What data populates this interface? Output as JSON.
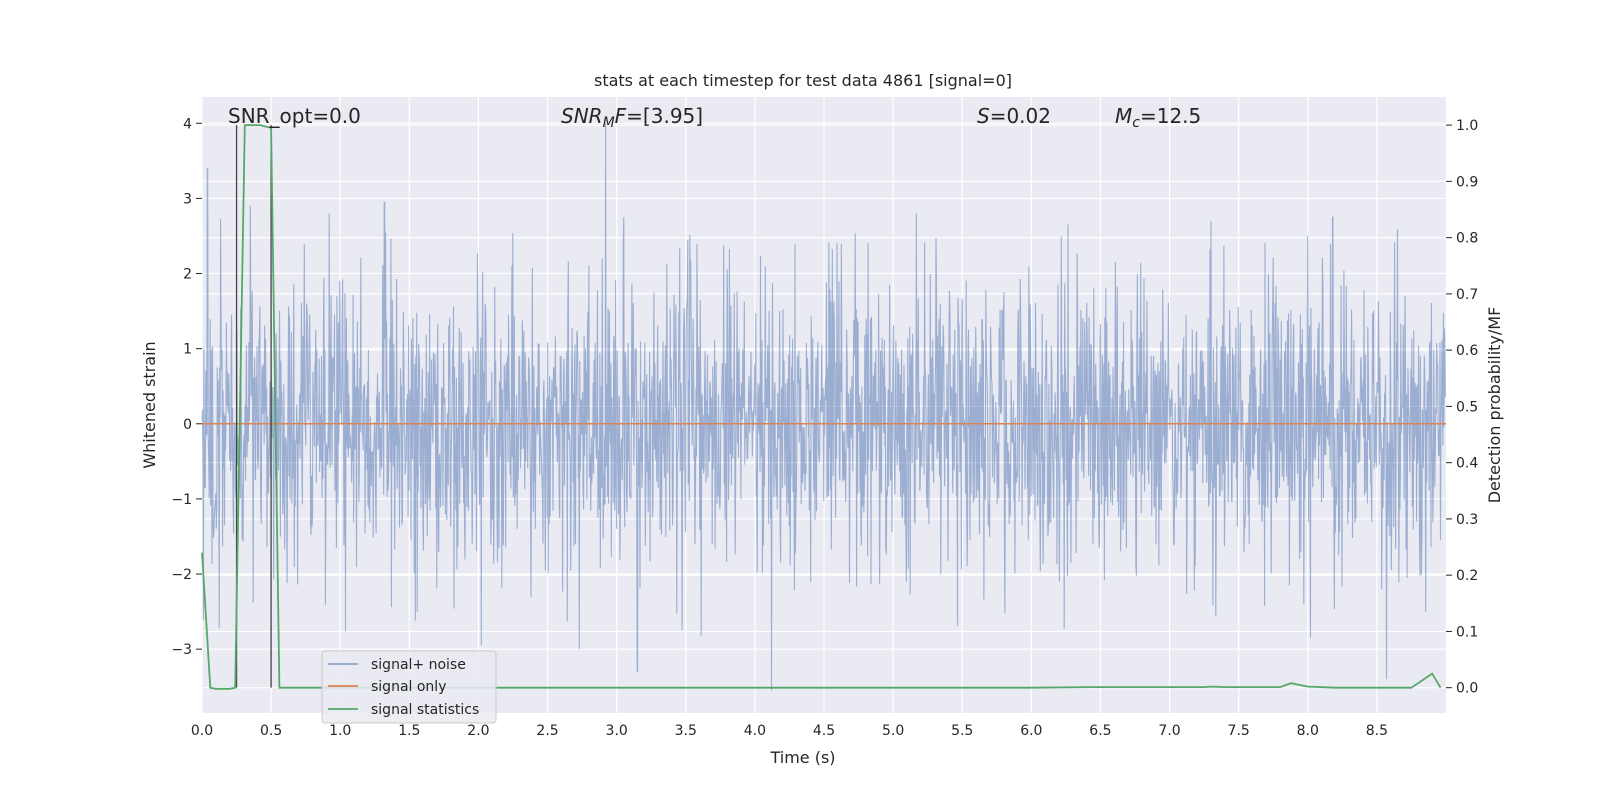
{
  "chart_data": {
    "type": "line",
    "title": "stats at each timestep for test data 4861 [signal=0]",
    "xlabel": "Time (s)",
    "ylabel": "Whitened strain",
    "y2label": "Detection probability/MF",
    "xlim": [
      0.0,
      9.0
    ],
    "ylim": [
      -3.85,
      4.35
    ],
    "y2lim": [
      -0.045,
      1.05
    ],
    "xticks": [
      0.0,
      0.5,
      1.0,
      1.5,
      2.0,
      2.5,
      3.0,
      3.5,
      4.0,
      4.5,
      5.0,
      5.5,
      6.0,
      6.5,
      7.0,
      7.5,
      8.0,
      8.5
    ],
    "xtick_labels": [
      "0.0",
      "0.5",
      "1.0",
      "1.5",
      "2.0",
      "2.5",
      "3.0",
      "3.5",
      "4.0",
      "4.5",
      "5.0",
      "5.5",
      "6.0",
      "6.5",
      "7.0",
      "7.5",
      "8.0",
      "8.5"
    ],
    "yticks": [
      -3,
      -2,
      -1,
      0,
      1,
      2,
      3,
      4
    ],
    "ytick_labels": [
      "−3",
      "−2",
      "−1",
      "0",
      "1",
      "2",
      "3",
      "4"
    ],
    "y2ticks": [
      0.0,
      0.1,
      0.2,
      0.3,
      0.4,
      0.5,
      0.6,
      0.7,
      0.8,
      0.9,
      1.0
    ],
    "y2tick_labels": [
      "0.0",
      "0.1",
      "0.2",
      "0.3",
      "0.4",
      "0.5",
      "0.6",
      "0.7",
      "0.8",
      "0.9",
      "1.0"
    ],
    "grid": true,
    "legend_position": "lower-left",
    "annotations": {
      "snr_opt": "SNR_opt=0.0",
      "snr_mf_name": "SNR",
      "snr_mf_sub": "M",
      "snr_mf_rest": "F",
      "snr_mf_value": "=[3.95]",
      "s_name": "S",
      "s_value": "=0.02",
      "mc_name": "M",
      "mc_sub": "c",
      "mc_value": "=12.5"
    },
    "series": [
      {
        "name": "signal+ noise",
        "color": "#4c72b0",
        "description": "whitened strain noise, approx. Gaussian, peaks near 4.0 at t=2.92 and -3.5 at t=4.12",
        "peaks": [
          {
            "x": 0.04,
            "y": 3.4
          },
          {
            "x": 0.35,
            "y": 2.9
          },
          {
            "x": 0.92,
            "y": 2.8
          },
          {
            "x": 1.32,
            "y": 2.95
          },
          {
            "x": 2.92,
            "y": 4.0
          },
          {
            "x": 3.05,
            "y": 2.75
          },
          {
            "x": 5.17,
            "y": 2.8
          },
          {
            "x": 7.3,
            "y": 2.7
          },
          {
            "x": 8.18,
            "y": 2.75
          },
          {
            "x": 2.02,
            "y": -2.95
          },
          {
            "x": 2.73,
            "y": -3.0
          },
          {
            "x": 3.15,
            "y": -3.3
          },
          {
            "x": 4.12,
            "y": -3.55
          },
          {
            "x": 8.57,
            "y": -3.4
          },
          {
            "x": 8.02,
            "y": -2.85
          }
        ]
      },
      {
        "name": "signal only",
        "color": "#dd8452",
        "x": [
          0.0,
          9.0
        ],
        "y": [
          0.0,
          0.0
        ]
      },
      {
        "name": "signal statistics",
        "color": "#55a868",
        "axis": "right",
        "x": [
          0.0,
          0.06,
          0.1,
          0.2,
          0.24,
          0.31,
          0.35,
          0.42,
          0.5,
          0.56,
          0.6,
          1.0,
          2.0,
          3.0,
          4.0,
          5.0,
          6.0,
          6.4,
          7.0,
          7.25,
          7.3,
          7.4,
          7.8,
          7.88,
          8.0,
          8.2,
          8.5,
          8.75,
          8.84,
          8.9,
          8.96
        ],
        "y": [
          0.24,
          0.0,
          -0.002,
          -0.002,
          0.0,
          1.0,
          1.0,
          1.0,
          0.995,
          0.0,
          0.0,
          0.0,
          0.0,
          0.0,
          0.0,
          0.0,
          0.0,
          0.001,
          0.001,
          0.001,
          0.002,
          0.001,
          0.001,
          0.008,
          0.002,
          0.0,
          0.0,
          0.0,
          0.015,
          0.025,
          0.0
        ]
      }
    ],
    "markers": [
      {
        "name": "signal window start",
        "x": 0.25
      },
      {
        "name": "signal window end",
        "x": 0.5
      }
    ]
  }
}
